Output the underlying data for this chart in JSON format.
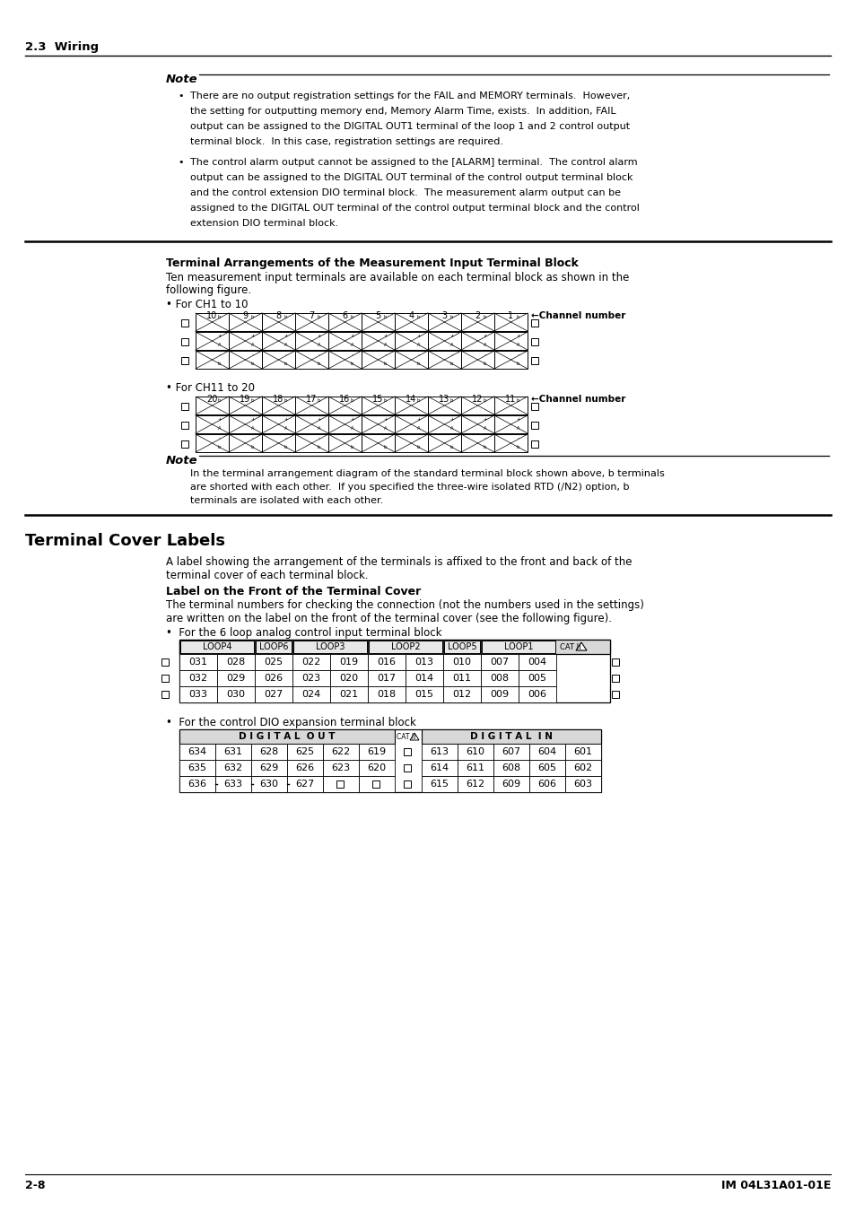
{
  "page_bg": "#ffffff",
  "section_header": "2.3  Wiring",
  "note_title": "Note",
  "bullet1_lines": [
    "There are no output registration settings for the FAIL and MEMORY terminals.  However,",
    "the setting for outputting memory end, Memory Alarm Time, exists.  In addition, FAIL",
    "output can be assigned to the DIGITAL OUT1 terminal of the loop 1 and 2 control output",
    "terminal block.  In this case, registration settings are required."
  ],
  "bullet2_lines": [
    "The control alarm output cannot be assigned to the [ALARM] terminal.  The control alarm",
    "output can be assigned to the DIGITAL OUT terminal of the control output terminal block",
    "and the control extension DIO terminal block.  The measurement alarm output can be",
    "assigned to the DIGITAL OUT terminal of the control output terminal block and the control",
    "extension DIO terminal block."
  ],
  "section1_title": "Terminal Arrangements of the Measurement Input Terminal Block",
  "section1_line1": "Ten measurement input terminals are available on each terminal block as shown in the",
  "section1_line2": "following figure.",
  "ch1_label": "• For CH1 to 10",
  "ch1_channels": [
    "10",
    "9",
    "8",
    "7",
    "6",
    "5",
    "4",
    "3",
    "2",
    "1"
  ],
  "ch_label_arrow": "←Channel number",
  "ch11_label": "• For CH11 to 20",
  "ch11_channels": [
    "20",
    "19",
    "18",
    "17",
    "16",
    "15",
    "14",
    "13",
    "12",
    "11"
  ],
  "note2_title": "Note",
  "note2_lines": [
    "In the terminal arrangement diagram of the standard terminal block shown above, b terminals",
    "are shorted with each other.  If you specified the three-wire isolated RTD (/N2) option, b",
    "terminals are isolated with each other."
  ],
  "section2_title": "Terminal Cover Labels",
  "section2_line1": "A label showing the arrangement of the terminals is affixed to the front and back of the",
  "section2_line2": "terminal cover of each terminal block.",
  "label_front_title": "Label on the Front of the Terminal Cover",
  "label_text1": "The terminal numbers for checking the connection (not the numbers used in the settings)",
  "label_text2": "are written on the label on the front of the terminal cover (see the following figure).",
  "analog_bullet": "•  For the 6 loop analog control input terminal block",
  "analog_row1": [
    "031",
    "028",
    "025",
    "022",
    "019",
    "016",
    "013",
    "010",
    "007",
    "004"
  ],
  "analog_row2": [
    "032",
    "029",
    "026",
    "023",
    "020",
    "017",
    "014",
    "011",
    "008",
    "005"
  ],
  "analog_row3": [
    "033",
    "030",
    "027",
    "024",
    "021",
    "018",
    "015",
    "012",
    "009",
    "006"
  ],
  "dio_bullet": "•  For the control DIO expansion terminal block",
  "dio_header_left": "D I G I T A L  O U T",
  "dio_header_right": "D I G I T A L  I N",
  "dio_row1": [
    "634",
    "631",
    "628",
    "625",
    "622",
    "619",
    "",
    "613",
    "610",
    "607",
    "604",
    "601"
  ],
  "dio_row2": [
    "635",
    "632",
    "629",
    "626",
    "623",
    "620",
    "",
    "614",
    "611",
    "608",
    "605",
    "602"
  ],
  "dio_row3": [
    "636",
    "633",
    "630",
    "627",
    "",
    "",
    "",
    "615",
    "612",
    "609",
    "606",
    "603"
  ],
  "footer_left": "2-8",
  "footer_right": "IM 04L31A01-01E"
}
